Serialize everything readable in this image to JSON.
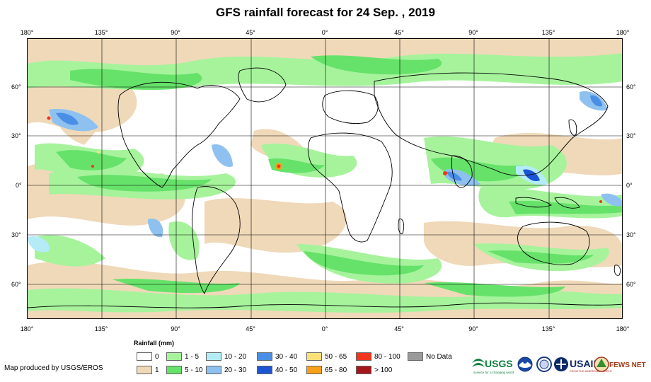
{
  "title": "GFS rainfall forecast for 24 Sep. , 2019",
  "lon_labels": [
    "180°",
    "135°",
    "90°",
    "45°",
    "0°",
    "45°",
    "90°",
    "135°",
    "180°"
  ],
  "lat_labels": [
    "60°",
    "30°",
    "0°",
    "30°",
    "60°"
  ],
  "legend": {
    "title": "Rainfall (mm)",
    "items": [
      {
        "label": "0",
        "color": "#ffffff"
      },
      {
        "label": "1",
        "color": "#efd9b9"
      },
      {
        "label": "1 - 5",
        "color": "#a6f39c"
      },
      {
        "label": "5 - 10",
        "color": "#66e26a"
      },
      {
        "label": "10 - 20",
        "color": "#b3ecf7"
      },
      {
        "label": "20 - 30",
        "color": "#8ec1ef"
      },
      {
        "label": "30 - 40",
        "color": "#4a8ee6"
      },
      {
        "label": "40 - 50",
        "color": "#1c55d4"
      },
      {
        "label": "50 - 65",
        "color": "#fbe07a"
      },
      {
        "label": "65 - 80",
        "color": "#f7a11a"
      },
      {
        "label": "80 - 100",
        "color": "#f0361e"
      },
      {
        "label": "> 100",
        "color": "#a4161c"
      },
      {
        "label": "No Data",
        "color": "#9a9a9a"
      }
    ]
  },
  "credit": "Map produced by USGS/EROS",
  "logos": {
    "usgs": "USGS",
    "usgs_tagline": "science for a changing world",
    "usaid": "USAID",
    "usaid_tagline": "FROM THE AMERICAN PEOPLE",
    "fews": "FEWS NET"
  }
}
